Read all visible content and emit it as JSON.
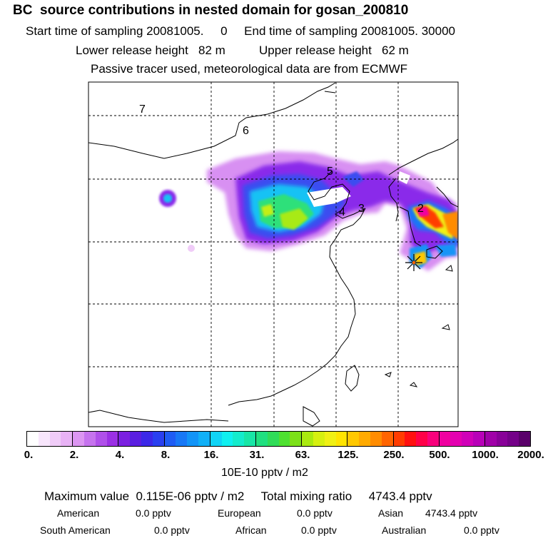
{
  "header": {
    "title": "BC  source contributions in nested domain for gosan_200810",
    "line1": "Start time of sampling 20081005.     0     End time of sampling 20081005. 30000",
    "line2": "Lower release height   82 m          Upper release height   62 m",
    "line3": "Passive tracer used, meteorological data are from ECMWF"
  },
  "map": {
    "region_labels": [
      "7",
      "6",
      "5",
      "4",
      "3",
      "2"
    ],
    "receptor_marker": "star-icon"
  },
  "colorbar": {
    "colors": [
      "#ffffff",
      "#f8e6fc",
      "#f0ccf8",
      "#e8b2f5",
      "#dc96f2",
      "#c673ee",
      "#b050ea",
      "#9b30e5",
      "#7b20e0",
      "#5a1ee0",
      "#3c28e8",
      "#2a40f0",
      "#1f5cf4",
      "#1878f6",
      "#1294f7",
      "#10b0f7",
      "#10d4f6",
      "#10f0f0",
      "#14eccc",
      "#18e6a6",
      "#20e080",
      "#30dc58",
      "#4ee030",
      "#7ce018",
      "#aaea10",
      "#d6f010",
      "#f0f014",
      "#ffe400",
      "#ffc800",
      "#ffaa00",
      "#ff8c00",
      "#ff6400",
      "#ff3c00",
      "#ff1010",
      "#ff0048",
      "#f8007c",
      "#f000a0",
      "#e400b0",
      "#d000b8",
      "#b800b8",
      "#a000a8",
      "#880098",
      "#740088",
      "#5a006a"
    ],
    "tick_labels": [
      "0.",
      "2.",
      "4.",
      "8.",
      "16.",
      "31.",
      "63.",
      "125.",
      "250.",
      "500.",
      "1000.",
      "2000."
    ],
    "unit": "10E-10 pptv / m2"
  },
  "summary": {
    "max_line": "Maximum value  0.115E-06 pptv / m2     Total mixing ratio     4743.4 pptv",
    "regions": [
      {
        "label": "American",
        "value": "0.0 pptv"
      },
      {
        "label": "European",
        "value": "0.0 pptv"
      },
      {
        "label": "Asian",
        "value": "4743.4 pptv"
      },
      {
        "label": "South American",
        "value": "0.0 pptv"
      },
      {
        "label": "African",
        "value": "0.0 pptv"
      },
      {
        "label": "Australian",
        "value": "0.0 pptv"
      }
    ]
  }
}
